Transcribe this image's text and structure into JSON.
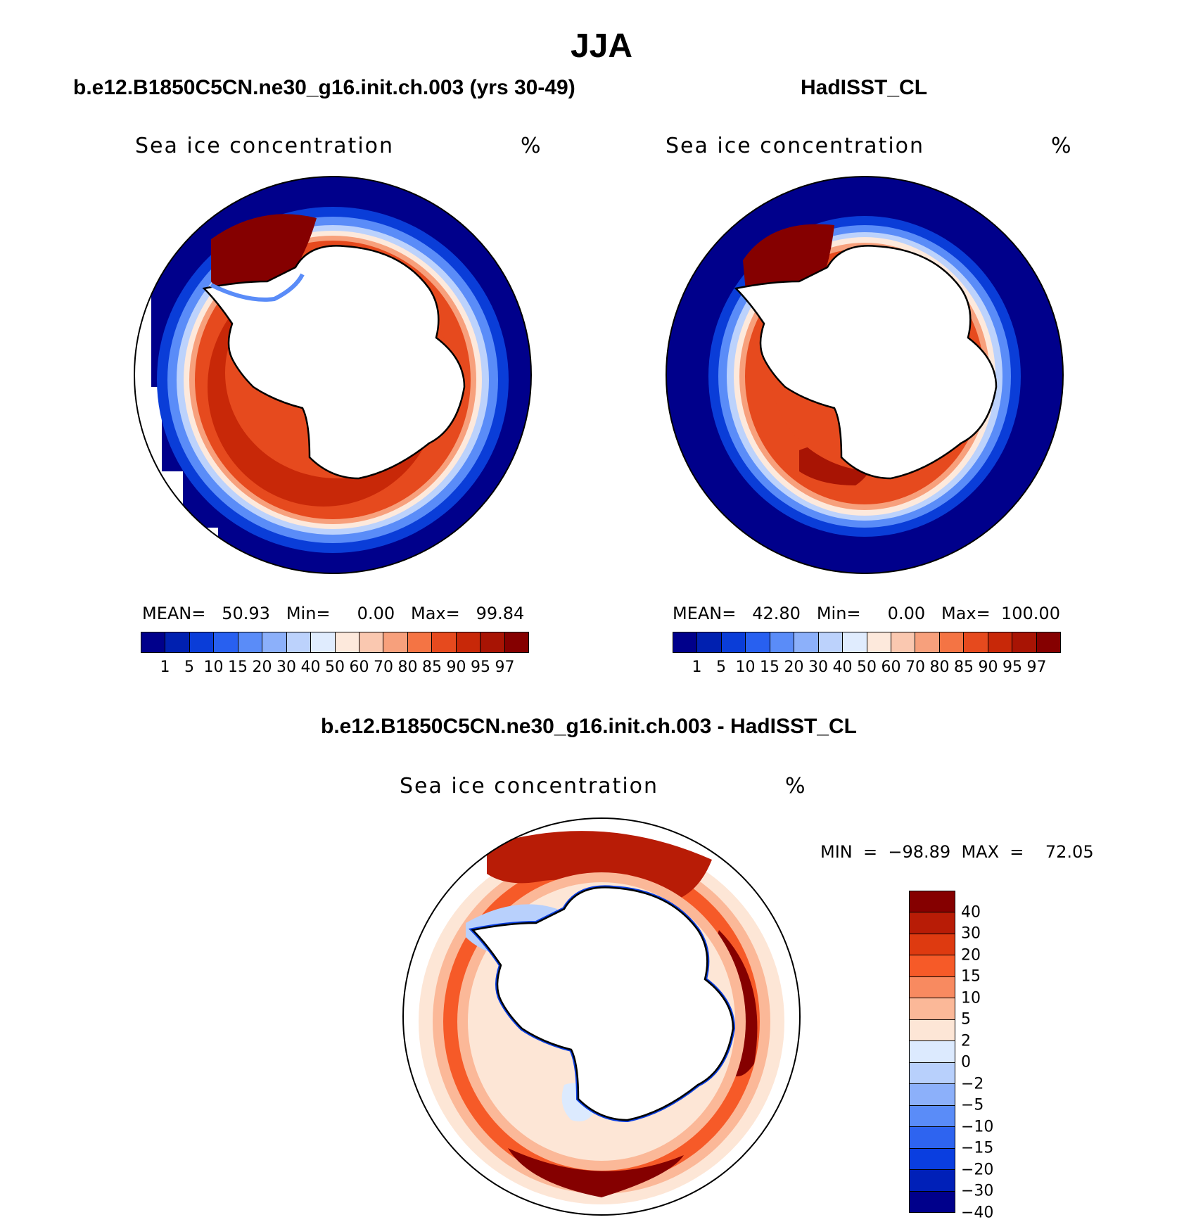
{
  "figure": {
    "title": "JJA"
  },
  "panel_left": {
    "subtitle": "b.e12.B1850C5CN.ne30_g16.init.ch.003 (yrs 30-49)",
    "plot_title": "Sea ice concentration",
    "units": "%",
    "stats": "MEAN=   50.93   Min=     0.00   Max=   99.84"
  },
  "panel_right": {
    "subtitle": "HadISST_CL",
    "plot_title": "Sea ice concentration",
    "units": "%",
    "stats": "MEAN=   42.80   Min=     0.00   Max=  100.00"
  },
  "panel_diff": {
    "subtitle": "b.e12.B1850C5CN.ne30_g16.init.ch.003 - HadISST_CL",
    "plot_title": "Sea ice concentration",
    "units": "%",
    "stats": "MIN  =  −98.89  MAX  =    72.05"
  },
  "colorbar_abs": {
    "colors": [
      "#00008b",
      "#0020b0",
      "#0a3dd8",
      "#2860f0",
      "#5a8cf8",
      "#8cb0fa",
      "#bcd2fc",
      "#e0ecfe",
      "#fde9dc",
      "#fac8b0",
      "#f7a07c",
      "#f47444",
      "#e64a1e",
      "#c82808",
      "#a81404",
      "#850000"
    ],
    "labels": [
      "1",
      "5",
      "10",
      "15",
      "20",
      "30",
      "40",
      "50",
      "60",
      "70",
      "80",
      "85",
      "90",
      "95",
      "97"
    ]
  },
  "colorbar_diff": {
    "colors": [
      "#850000",
      "#b81c06",
      "#de3a10",
      "#f65a28",
      "#f88a60",
      "#fbb898",
      "#fde6d6",
      "#dceafe",
      "#b8d0fc",
      "#8cb0fa",
      "#5a8cf8",
      "#2e64f0",
      "#0a3ee0",
      "#0020b8",
      "#00008b"
    ],
    "labels": [
      "40",
      "30",
      "20",
      "15",
      "10",
      "5",
      "2",
      "0",
      "−2",
      "−5",
      "−10",
      "−15",
      "−20",
      "−30",
      "−40"
    ]
  },
  "colors": {
    "land": "#ffffff",
    "coast": "#000000",
    "ocean_low": "#00008b",
    "ice_high": "#a81404"
  }
}
